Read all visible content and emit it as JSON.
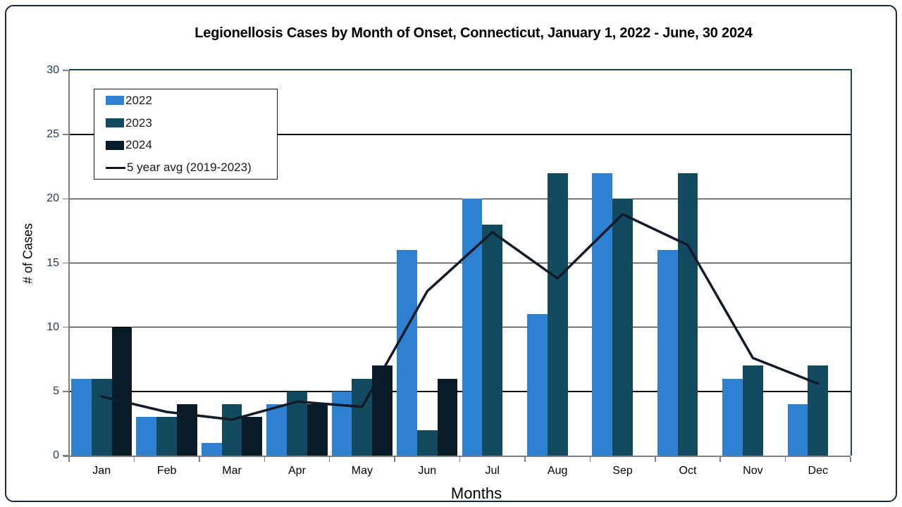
{
  "title": "Legionellosis Cases by Month of Onset, Connecticut, January 1, 2022 - June, 30 2024",
  "chart_data": {
    "type": "bar",
    "categories": [
      "Jan",
      "Feb",
      "Mar",
      "Apr",
      "May",
      "Jun",
      "Jul",
      "Aug",
      "Sep",
      "Oct",
      "Nov",
      "Dec"
    ],
    "series": [
      {
        "name": "2022",
        "type": "bar",
        "color": "#2E81D0",
        "values": [
          6,
          3,
          1,
          4,
          5,
          16,
          20,
          11,
          22,
          16,
          6,
          4
        ]
      },
      {
        "name": "2023",
        "type": "bar",
        "color": "#134A5F",
        "values": [
          6,
          3,
          4,
          5,
          6,
          2,
          18,
          22,
          20,
          22,
          7,
          7
        ]
      },
      {
        "name": "2024",
        "type": "bar",
        "color": "#0A1B28",
        "values": [
          10,
          4,
          3,
          4,
          7,
          6,
          null,
          null,
          null,
          null,
          null,
          null
        ]
      },
      {
        "name": "5 year avg (2019-2023)",
        "type": "line",
        "color": "#121C28",
        "values": [
          4.6,
          3.4,
          2.8,
          4.2,
          3.8,
          12.8,
          17.4,
          13.8,
          18.8,
          16.4,
          7.6,
          5.6
        ]
      }
    ],
    "xlabel": "Months",
    "ylabel": "# of Cases",
    "ylim": [
      0,
      30
    ],
    "yticks": [
      0,
      5,
      10,
      15,
      20,
      25,
      30
    ],
    "grid": true,
    "legend_position": "top-left"
  },
  "colors": {
    "frame_border": "#17293A",
    "plot_border": "#1E4356",
    "axis": "#7F7F7F",
    "gridline": "#000000",
    "y_tick_label": "#1F3A55",
    "x_tick_label": "#000000",
    "background": "#FFFFFF"
  }
}
